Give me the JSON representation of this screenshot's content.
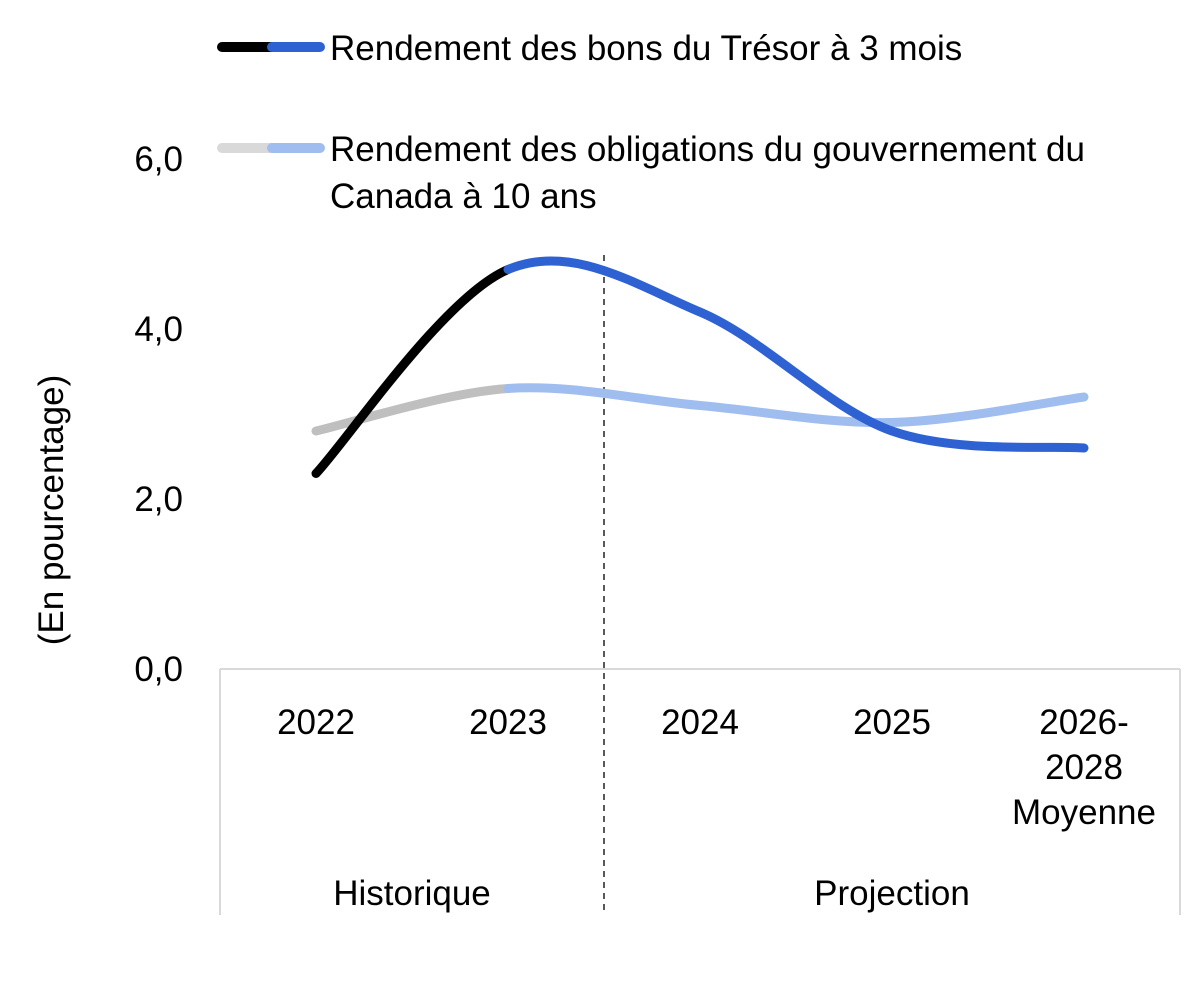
{
  "chart_data": {
    "type": "line",
    "title": "",
    "ylabel": "(En pourcentage)",
    "xlabel": "",
    "ylim": [
      0,
      6
    ],
    "yticks": [
      0,
      2,
      4,
      6
    ],
    "ytick_labels": [
      "0,0",
      "2,0",
      "4,0",
      "6,0"
    ],
    "categories": [
      [
        "2022"
      ],
      [
        "2023"
      ],
      [
        "2024"
      ],
      [
        "2025"
      ],
      [
        "2026-",
        "2028",
        "Moyenne"
      ]
    ],
    "groups": [
      {
        "label": "Historique",
        "categories": [
          0,
          1
        ]
      },
      {
        "label": "Projection",
        "categories": [
          2,
          3,
          4
        ]
      }
    ],
    "projection_boundary": "between 2023 and 2024",
    "grid": false,
    "legend_position": "top",
    "series": [
      {
        "name": "Rendement des bons du Trésor à 3 mois",
        "values": [
          2.3,
          4.7,
          4.2,
          2.8,
          2.6
        ],
        "color_historical": "#000000",
        "color_projection": "#2E62D3"
      },
      {
        "name": "Rendement des obligations du gouvernement du Canada à 10 ans",
        "values": [
          2.8,
          3.3,
          3.1,
          2.9,
          3.2
        ],
        "color_historical": "#BFBFBF",
        "color_projection": "#A0BDF0"
      }
    ]
  },
  "legend": {
    "items": [
      {
        "lines": [
          "Rendement des bons du Trésor à 3 mois"
        ],
        "color_historical": "#000000",
        "color_projection": "#2E62D3"
      },
      {
        "lines": [
          "Rendement des obligations du gouvernement du",
          "Canada à 10 ans"
        ],
        "color_historical": "#D9D9D9",
        "color_projection": "#A0BDF0"
      }
    ]
  }
}
